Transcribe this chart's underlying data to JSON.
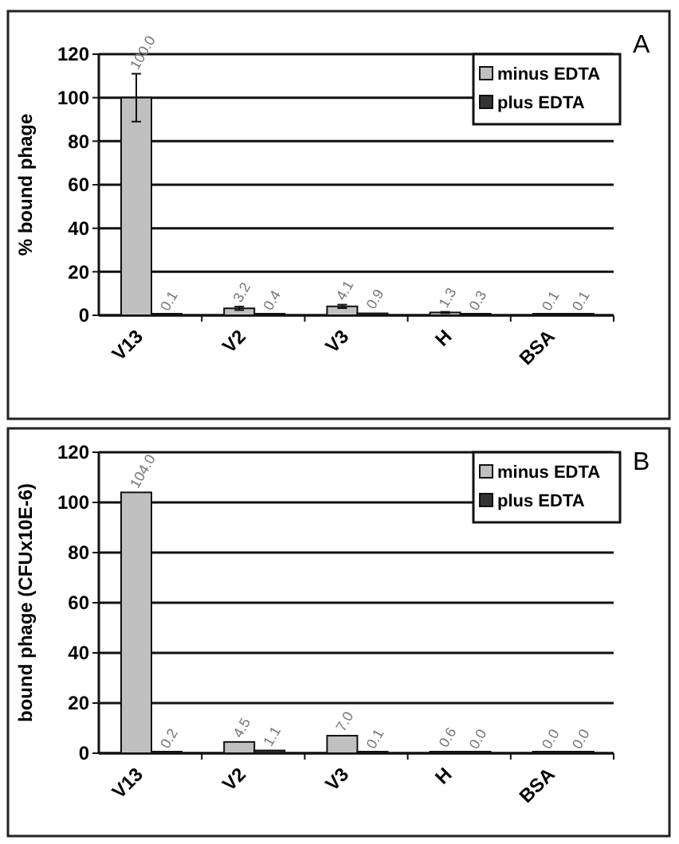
{
  "chart_data": [
    {
      "type": "bar",
      "ylabel": "% bound phage",
      "annotations": [
        "A"
      ],
      "categories": [
        "V13",
        "V2",
        "V3",
        "H",
        "BSA"
      ],
      "ylim": [
        0,
        120
      ],
      "yticks": [
        0,
        20,
        40,
        60,
        80,
        100,
        120
      ],
      "grid": "y",
      "legend": "top right",
      "series": [
        {
          "name": "minus EDTA",
          "color": "#c0c0c0",
          "values": [
            100,
            3.2,
            4.1,
            1.3,
            0.1
          ],
          "value_labels": [
            "100.0",
            "3.2",
            "4.1",
            "1.3",
            "0.1"
          ],
          "errors": [
            11,
            0.8,
            0.8,
            0.3,
            null
          ]
        },
        {
          "name": "plus EDTA",
          "color": "#333333",
          "values": [
            0.1,
            0.4,
            0.9,
            0.3,
            0.1
          ],
          "value_labels": [
            "0.1",
            "0.4",
            "0.9",
            "0.3",
            "0.1"
          ]
        }
      ]
    },
    {
      "type": "bar",
      "ylabel": "bound phage  (CFUx10E-6)",
      "annotations": [
        "B"
      ],
      "categories": [
        "V13",
        "V2",
        "V3",
        "H",
        "BSA"
      ],
      "ylim": [
        0,
        120
      ],
      "yticks": [
        0,
        20,
        40,
        60,
        80,
        100,
        120
      ],
      "grid": "y",
      "legend": "top right",
      "series": [
        {
          "name": "minus EDTA",
          "color": "#c0c0c0",
          "values": [
            104,
            4.5,
            7,
            0.6,
            0
          ],
          "value_labels": [
            "104.0",
            "4.5",
            "7.0",
            "0.6",
            "0.0"
          ]
        },
        {
          "name": "plus EDTA",
          "color": "#333333",
          "values": [
            0.2,
            1.1,
            0.1,
            0,
            0
          ],
          "value_labels": [
            "0.2",
            "1.1",
            "0.1",
            "0.0",
            "0.0"
          ]
        }
      ]
    }
  ]
}
